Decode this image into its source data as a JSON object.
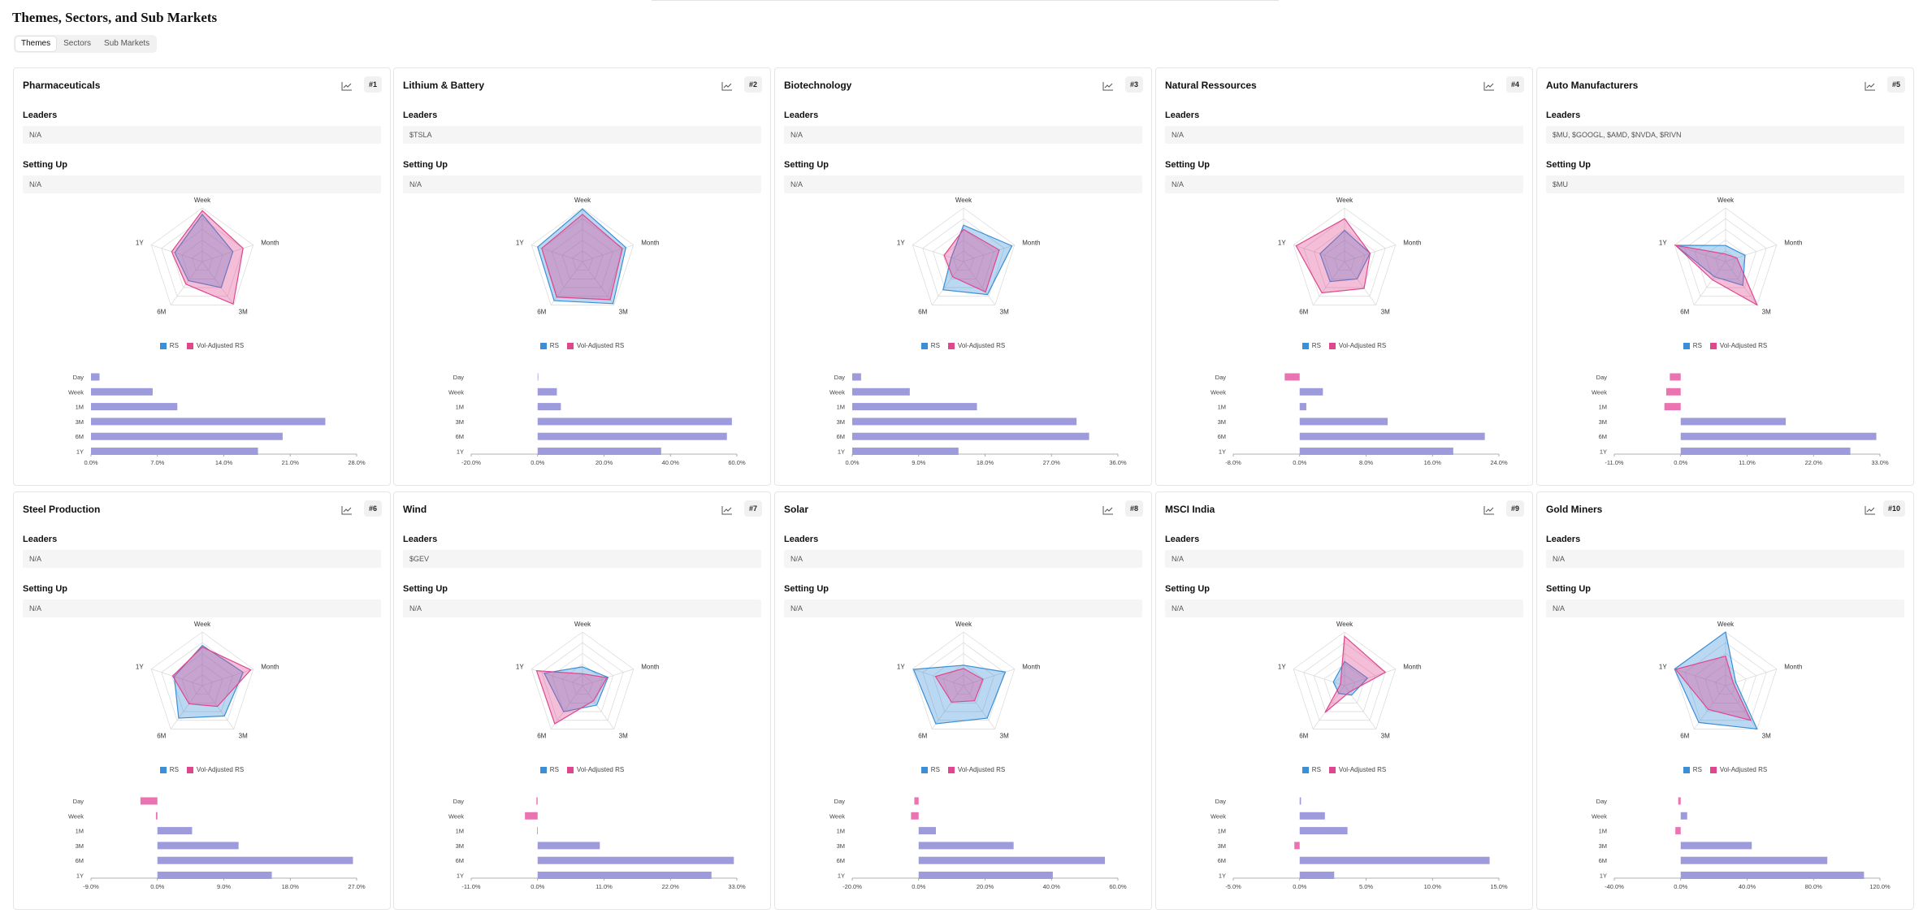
{
  "page": {
    "title": "Themes, Sectors, and Sub Markets"
  },
  "tabs": [
    {
      "label": "Themes",
      "active": true
    },
    {
      "label": "Sectors",
      "active": false
    },
    {
      "label": "Sub Markets",
      "active": false
    }
  ],
  "labels": {
    "leaders": "Leaders",
    "setting_up": "Setting Up"
  },
  "legend": {
    "rs": "RS",
    "vol_adjusted": "Vol-Adjusted RS"
  },
  "colors": {
    "rs": "#3a8fd6",
    "vol_adjusted": "#e0468e",
    "bar_positive": "#9d9bdc",
    "bar_negative": "#ea74b1"
  },
  "icons": {
    "chart_button": "line-chart-icon"
  },
  "radar_axes": [
    "Week",
    "Month",
    "3M",
    "6M",
    "1Y"
  ],
  "bar_periods": [
    "Day",
    "Week",
    "1M",
    "3M",
    "6M",
    "1Y"
  ],
  "cards": [
    {
      "title": "Pharmaceuticals",
      "rank": "#1",
      "leaders": "N/A",
      "setting_up": "N/A",
      "radar": {
        "rs": [
          0.88,
          0.6,
          0.6,
          0.44,
          0.54
        ],
        "vol": [
          0.95,
          0.8,
          0.98,
          0.52,
          0.6
        ]
      },
      "chart_data": {
        "type": "bar",
        "categories": [
          "Day",
          "Week",
          "1M",
          "3M",
          "6M",
          "1Y"
        ],
        "values": [
          0.9,
          6.5,
          9.1,
          24.7,
          20.2,
          17.6
        ],
        "xticks": [
          "0.0%",
          "7.0%",
          "14.0%",
          "21.0%",
          "28.0%"
        ],
        "xlim": [
          0,
          28
        ]
      }
    },
    {
      "title": "Lithium & Battery",
      "rank": "#2",
      "leaders": "$TSLA",
      "setting_up": "N/A",
      "radar": {
        "rs": [
          0.98,
          0.85,
          0.97,
          0.9,
          0.88
        ],
        "vol": [
          0.88,
          0.78,
          0.88,
          0.82,
          0.8
        ]
      },
      "chart_data": {
        "type": "bar",
        "categories": [
          "Day",
          "Week",
          "1M",
          "3M",
          "6M",
          "1Y"
        ],
        "values": [
          0.1,
          5.8,
          7.0,
          58.5,
          57.0,
          37.2
        ],
        "xticks": [
          "-20.0%",
          "0.0%",
          "20.0%",
          "40.0%",
          "60.0%"
        ],
        "xlim": [
          -20,
          60
        ]
      }
    },
    {
      "title": "Biotechnology",
      "rank": "#3",
      "leaders": "N/A",
      "setting_up": "N/A",
      "radar": {
        "rs": [
          0.68,
          0.95,
          0.76,
          0.65,
          0.24
        ],
        "vol": [
          0.6,
          0.7,
          0.7,
          0.35,
          0.38
        ]
      },
      "chart_data": {
        "type": "bar",
        "categories": [
          "Day",
          "Week",
          "1M",
          "3M",
          "6M",
          "1Y"
        ],
        "values": [
          1.2,
          7.8,
          16.9,
          30.4,
          32.1,
          14.4
        ],
        "xticks": [
          "0.0%",
          "9.0%",
          "18.0%",
          "27.0%",
          "36.0%"
        ],
        "xlim": [
          0,
          36
        ]
      }
    },
    {
      "title": "Natural Ressources",
      "rank": "#4",
      "leaders": "N/A",
      "setting_up": "N/A",
      "radar": {
        "rs": [
          0.58,
          0.5,
          0.4,
          0.46,
          0.48
        ],
        "vol": [
          0.8,
          0.5,
          0.62,
          0.72,
          0.95
        ]
      },
      "chart_data": {
        "type": "bar",
        "categories": [
          "Day",
          "Week",
          "1M",
          "3M",
          "6M",
          "1Y"
        ],
        "values": [
          -1.8,
          2.8,
          0.8,
          10.6,
          22.3,
          18.5
        ],
        "xticks": [
          "-8.0%",
          "0.0%",
          "8.0%",
          "16.0%",
          "24.0%"
        ],
        "xlim": [
          -8,
          24
        ]
      }
    },
    {
      "title": "Auto Manufacturers",
      "rank": "#5",
      "leaders": "$MU, $GOOGL, $AMD, $NVDA, $RIVN",
      "setting_up": "$MU",
      "radar": {
        "rs": [
          0.3,
          0.38,
          0.55,
          0.35,
          0.98
        ],
        "vol": [
          0.14,
          0.22,
          1.0,
          0.42,
          0.98
        ]
      },
      "chart_data": {
        "type": "bar",
        "categories": [
          "Day",
          "Week",
          "1M",
          "3M",
          "6M",
          "1Y"
        ],
        "values": [
          -1.8,
          -2.4,
          -2.7,
          17.4,
          32.4,
          28.1
        ],
        "xticks": [
          "-11.0%",
          "0.0%",
          "11.0%",
          "22.0%",
          "33.0%"
        ],
        "xlim": [
          -11,
          33
        ]
      }
    },
    {
      "title": "Steel Production",
      "rank": "#6",
      "leaders": "N/A",
      "setting_up": "N/A",
      "radar": {
        "rs": [
          0.75,
          0.8,
          0.7,
          0.75,
          0.55
        ],
        "vol": [
          0.72,
          0.95,
          0.48,
          0.42,
          0.58
        ]
      },
      "chart_data": {
        "type": "bar",
        "categories": [
          "Day",
          "Week",
          "1M",
          "3M",
          "6M",
          "1Y"
        ],
        "values": [
          -2.3,
          -0.2,
          4.7,
          11.0,
          26.5,
          15.5
        ],
        "xticks": [
          "-9.0%",
          "0.0%",
          "9.0%",
          "18.0%",
          "27.0%"
        ],
        "xlim": [
          -9,
          27
        ]
      }
    },
    {
      "title": "Wind",
      "rank": "#7",
      "leaders": "$GEV",
      "setting_up": "N/A",
      "radar": {
        "rs": [
          0.35,
          0.5,
          0.45,
          0.6,
          0.75
        ],
        "vol": [
          0.22,
          0.48,
          0.35,
          0.88,
          0.9
        ]
      },
      "chart_data": {
        "type": "bar",
        "categories": [
          "Day",
          "Week",
          "1M",
          "3M",
          "6M",
          "1Y"
        ],
        "values": [
          -0.2,
          -2.1,
          -0.1,
          10.3,
          32.5,
          28.8
        ],
        "xticks": [
          "-11.0%",
          "0.0%",
          "11.0%",
          "22.0%",
          "33.0%"
        ],
        "xlim": [
          -11,
          33
        ]
      }
    },
    {
      "title": "Solar",
      "rank": "#8",
      "leaders": "N/A",
      "setting_up": "N/A",
      "radar": {
        "rs": [
          0.38,
          0.82,
          0.75,
          0.88,
          0.98
        ],
        "vol": [
          0.32,
          0.38,
          0.35,
          0.38,
          0.55
        ]
      },
      "chart_data": {
        "type": "bar",
        "categories": [
          "Day",
          "Week",
          "1M",
          "3M",
          "6M",
          "1Y"
        ],
        "values": [
          -1.3,
          -2.3,
          5.2,
          28.6,
          56.1,
          40.4
        ],
        "xticks": [
          "-20.0%",
          "0.0%",
          "20.0%",
          "40.0%",
          "60.0%"
        ],
        "xlim": [
          -20,
          60
        ]
      }
    },
    {
      "title": "MSCI India",
      "rank": "#9",
      "leaders": "N/A",
      "setting_up": "N/A",
      "radar": {
        "rs": [
          0.45,
          0.45,
          0.22,
          0.18,
          0.22
        ],
        "vol": [
          0.92,
          0.8,
          0.15,
          0.62,
          0.08
        ]
      },
      "chart_data": {
        "type": "bar",
        "categories": [
          "Day",
          "Week",
          "1M",
          "3M",
          "6M",
          "1Y"
        ],
        "values": [
          0.1,
          1.9,
          3.6,
          -0.4,
          14.3,
          2.6
        ],
        "xticks": [
          "-5.0%",
          "0.0%",
          "5.0%",
          "10.0%",
          "15.0%"
        ],
        "xlim": [
          -5,
          15
        ]
      }
    },
    {
      "title": "Gold Miners",
      "rank": "#10",
      "leaders": "N/A",
      "setting_up": "N/A",
      "radar": {
        "rs": [
          1.0,
          0.2,
          1.0,
          0.85,
          1.0
        ],
        "vol": [
          0.55,
          0.15,
          0.8,
          0.55,
          0.98
        ]
      },
      "chart_data": {
        "type": "bar",
        "categories": [
          "Day",
          "Week",
          "1M",
          "3M",
          "6M",
          "1Y"
        ],
        "values": [
          -1.5,
          3.9,
          -3.2,
          42.8,
          88.3,
          110.4
        ],
        "xticks": [
          "-40.0%",
          "0.0%",
          "40.0%",
          "80.0%",
          "120.0%"
        ],
        "xlim": [
          -40,
          120
        ]
      }
    }
  ]
}
